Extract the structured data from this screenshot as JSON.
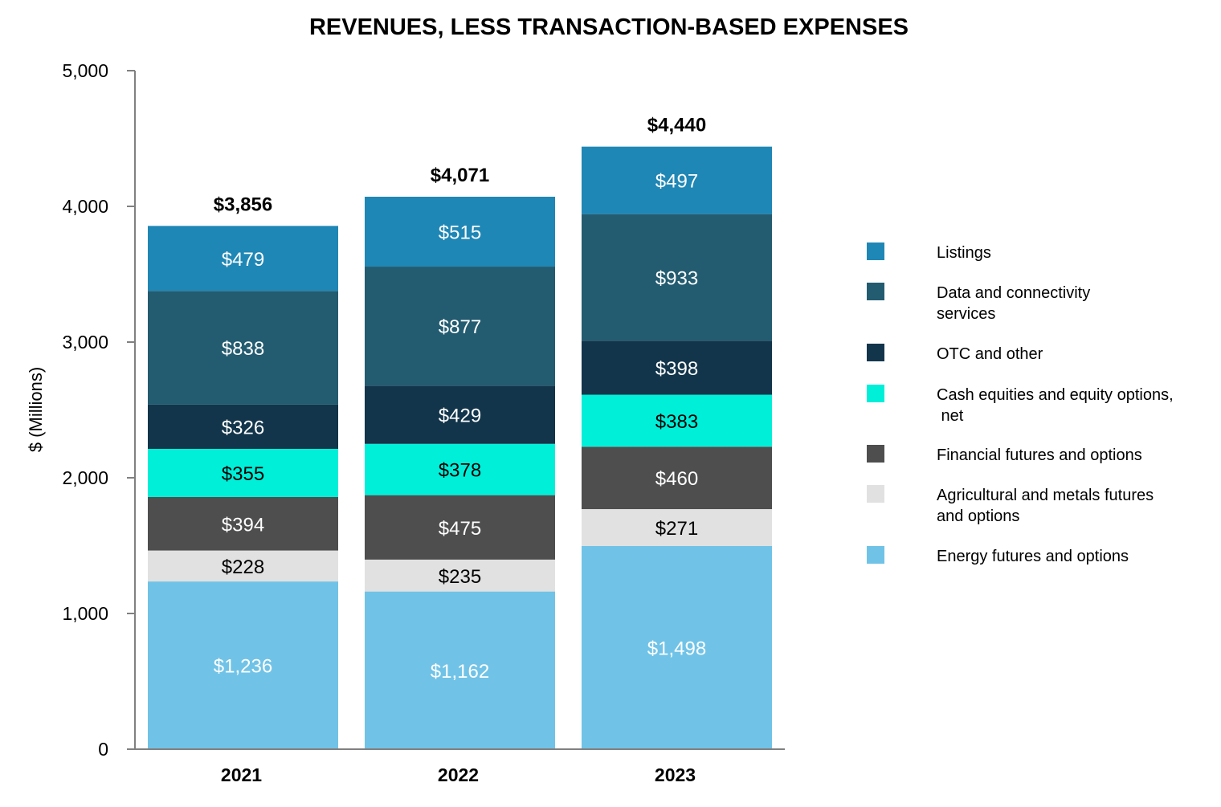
{
  "chart_data": {
    "type": "bar",
    "stacked": true,
    "title": "REVENUES, LESS TRANSACTION-BASED EXPENSES",
    "xlabel": "",
    "ylabel": "$ (Millions)",
    "ylim": [
      0,
      5000
    ],
    "yticks": [
      0,
      1000,
      2000,
      3000,
      4000,
      5000
    ],
    "ytick_labels": [
      "0",
      "1,000",
      "2,000",
      "3,000",
      "4,000",
      "5,000"
    ],
    "grid": false,
    "legend_position": "right",
    "categories": [
      "2021",
      "2022",
      "2023"
    ],
    "totals": [
      3856,
      4071,
      4440
    ],
    "total_labels": [
      "$3,856",
      "$4,071",
      "$4,440"
    ],
    "series": [
      {
        "name": "Energy futures and options",
        "color": "#70c3e7",
        "label_color": "#ffffff",
        "values": [
          1236,
          1162,
          1498
        ],
        "labels": [
          "$1,236",
          "$1,162",
          "$1,498"
        ]
      },
      {
        "name": "Agricultural and metals futures and options",
        "color": "#e1e1e1",
        "label_color": "#000000",
        "values": [
          228,
          235,
          271
        ],
        "labels": [
          "$228",
          "$235",
          "$271"
        ]
      },
      {
        "name": "Financial futures and options",
        "color": "#4e4e4e",
        "label_color": "#ffffff",
        "values": [
          394,
          475,
          460
        ],
        "labels": [
          "$394",
          "$475",
          "$460"
        ]
      },
      {
        "name": "Cash equities and equity options, net",
        "color": "#00efd9",
        "label_color": "#000000",
        "values": [
          355,
          378,
          383
        ],
        "labels": [
          "$355",
          "$378",
          "$383"
        ]
      },
      {
        "name": "OTC and other",
        "color": "#12354b",
        "label_color": "#ffffff",
        "values": [
          326,
          429,
          398
        ],
        "labels": [
          "$326",
          "$429",
          "$398"
        ]
      },
      {
        "name": "Data and connectivity services",
        "color": "#235c70",
        "label_color": "#ffffff",
        "values": [
          838,
          877,
          933
        ],
        "labels": [
          "$838",
          "$877",
          "$933"
        ]
      },
      {
        "name": "Listings",
        "color": "#1f87b5",
        "label_color": "#ffffff",
        "values": [
          479,
          515,
          497
        ],
        "labels": [
          "$479",
          "$515",
          "$497"
        ]
      }
    ],
    "legend": [
      {
        "series": 6,
        "lines": [
          "Listings"
        ]
      },
      {
        "series": 5,
        "lines": [
          "Data and connectivity",
          "services"
        ]
      },
      {
        "series": 4,
        "lines": [
          "OTC and other"
        ]
      },
      {
        "series": 3,
        "lines": [
          "Cash equities and equity options,",
          " net"
        ]
      },
      {
        "series": 2,
        "lines": [
          "Financial futures and options"
        ]
      },
      {
        "series": 1,
        "lines": [
          "Agricultural and metals futures",
          "and options"
        ]
      },
      {
        "series": 0,
        "lines": [
          "Energy futures and options"
        ]
      }
    ]
  }
}
